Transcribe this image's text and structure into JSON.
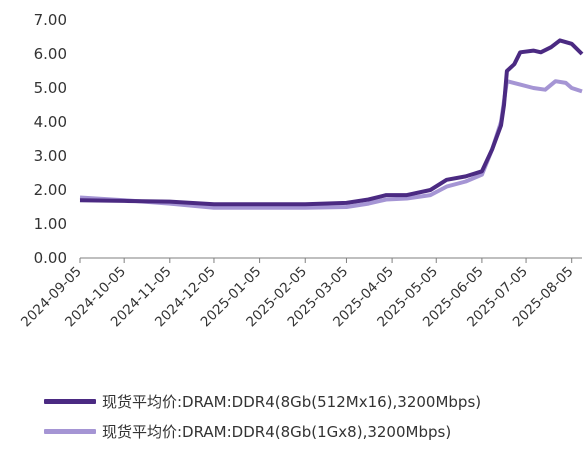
{
  "chart_data": {
    "type": "line",
    "title": "",
    "xlabel": "",
    "ylabel": "",
    "ylim": [
      0,
      7
    ],
    "yticks": [
      "0.00",
      "1.00",
      "2.00",
      "3.00",
      "4.00",
      "5.00",
      "6.00",
      "7.00"
    ],
    "xticks": [
      "2024-09-05",
      "2024-10-05",
      "2024-11-05",
      "2024-12-05",
      "2025-01-05",
      "2025-02-05",
      "2025-03-05",
      "2025-04-05",
      "2025-05-05",
      "2025-06-05",
      "2025-07-05",
      "2025-08-05"
    ],
    "xrange": [
      "2024-09-05",
      "2025-08-12"
    ],
    "grid": false,
    "legend_position": "bottom",
    "series": [
      {
        "name": "现货平均价:DRAM:DDR4(8Gb(512Mx16),3200Mbps)",
        "color": "#4b2a82",
        "points": [
          [
            "2024-09-05",
            1.7
          ],
          [
            "2024-10-05",
            1.68
          ],
          [
            "2024-11-05",
            1.66
          ],
          [
            "2024-12-05",
            1.58
          ],
          [
            "2025-01-05",
            1.58
          ],
          [
            "2025-02-05",
            1.58
          ],
          [
            "2025-03-05",
            1.62
          ],
          [
            "2025-03-20",
            1.72
          ],
          [
            "2025-04-01",
            1.85
          ],
          [
            "2025-04-15",
            1.85
          ],
          [
            "2025-05-01",
            2.0
          ],
          [
            "2025-05-12",
            2.3
          ],
          [
            "2025-05-25",
            2.4
          ],
          [
            "2025-06-05",
            2.55
          ],
          [
            "2025-06-12",
            3.2
          ],
          [
            "2025-06-18",
            3.9
          ],
          [
            "2025-06-20",
            4.5
          ],
          [
            "2025-06-22",
            5.5
          ],
          [
            "2025-06-27",
            5.7
          ],
          [
            "2025-07-01",
            6.05
          ],
          [
            "2025-07-10",
            6.1
          ],
          [
            "2025-07-15",
            6.05
          ],
          [
            "2025-07-22",
            6.2
          ],
          [
            "2025-07-28",
            6.4
          ],
          [
            "2025-08-05",
            6.3
          ],
          [
            "2025-08-12",
            6.0
          ]
        ]
      },
      {
        "name": "现货平均价:DRAM:DDR4(8Gb(1Gx8),3200Mbps)",
        "color": "#a595d4",
        "points": [
          [
            "2024-09-05",
            1.78
          ],
          [
            "2024-10-05",
            1.7
          ],
          [
            "2024-11-05",
            1.6
          ],
          [
            "2024-12-05",
            1.48
          ],
          [
            "2025-01-05",
            1.48
          ],
          [
            "2025-02-05",
            1.48
          ],
          [
            "2025-03-05",
            1.5
          ],
          [
            "2025-03-20",
            1.6
          ],
          [
            "2025-04-01",
            1.72
          ],
          [
            "2025-04-15",
            1.75
          ],
          [
            "2025-05-01",
            1.85
          ],
          [
            "2025-05-12",
            2.1
          ],
          [
            "2025-05-25",
            2.25
          ],
          [
            "2025-06-05",
            2.45
          ],
          [
            "2025-06-12",
            3.2
          ],
          [
            "2025-06-18",
            4.0
          ],
          [
            "2025-06-22",
            5.2
          ],
          [
            "2025-07-01",
            5.1
          ],
          [
            "2025-07-10",
            5.0
          ],
          [
            "2025-07-18",
            4.95
          ],
          [
            "2025-07-25",
            5.2
          ],
          [
            "2025-08-01",
            5.15
          ],
          [
            "2025-08-05",
            5.0
          ],
          [
            "2025-08-12",
            4.9
          ]
        ]
      }
    ]
  }
}
